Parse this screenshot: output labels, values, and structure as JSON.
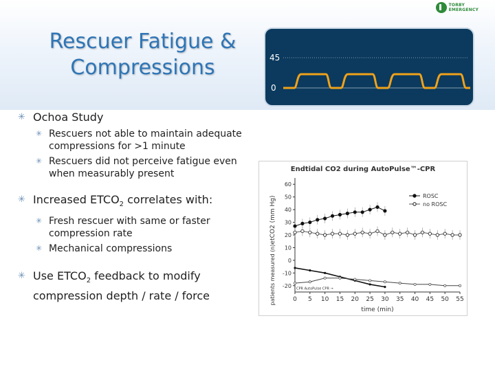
{
  "slide": {
    "title": "Rescuer Fatigue &\nCompressions",
    "logo_text": "TORBY EMERGENCY"
  },
  "monitor": {
    "label_high": "45",
    "label_low": "0",
    "colors": {
      "background": "#0b3a5e",
      "trace": "#f0a21a"
    }
  },
  "bullets": [
    {
      "text": "Ochoa Study",
      "sub": [
        "Rescuers not able to maintain adequate compressions for >1 minute",
        "Rescuers did not perceive fatigue even when measurably present"
      ]
    },
    {
      "text": "Increased ETCO2 correlates with:",
      "sub": [
        "Fresh rescuer with same or faster compression rate",
        "Mechanical compressions"
      ]
    },
    {
      "text": "Use ETCO2 feedback to modify compression depth / rate / force",
      "sub": []
    }
  ],
  "chart_data": {
    "type": "line",
    "title": "Endtidal CO2 during AutoPulse™-CPR",
    "xlabel": "time (min)",
    "ylabel": "etCO2 (mm Hg)",
    "ylabel2": "patients measured (n)",
    "x_ticks": [
      0,
      5,
      10,
      15,
      20,
      25,
      30,
      35,
      40,
      45,
      50,
      55
    ],
    "y_ticks": [
      60,
      50,
      40,
      30,
      20,
      10,
      0,
      -10,
      -20
    ],
    "ylim": [
      -25,
      65
    ],
    "xlim": [
      0,
      55
    ],
    "legend": "top-right",
    "annotation": "CPR  AutoPulse CPR →",
    "series": [
      {
        "name": "ROSC",
        "x": [
          0,
          2.5,
          5,
          7.5,
          10,
          12.5,
          15,
          17.5,
          20,
          22.5,
          25,
          27.5,
          30
        ],
        "y": [
          27,
          29,
          30,
          32,
          33,
          35,
          36,
          37,
          38,
          38,
          40,
          42,
          39
        ]
      },
      {
        "name": "no ROSC",
        "x": [
          0,
          2.5,
          5,
          7.5,
          10,
          12.5,
          15,
          17.5,
          20,
          22.5,
          25,
          27.5,
          30,
          32.5,
          35,
          37.5,
          40,
          42.5,
          45,
          47.5,
          50,
          52.5,
          55
        ],
        "y": [
          22,
          23,
          22,
          21,
          20,
          21,
          21,
          20,
          21,
          22,
          21,
          23,
          20,
          22,
          21,
          22,
          20,
          22,
          21,
          20,
          21,
          20,
          20
        ]
      }
    ],
    "patients_ROSC": {
      "x": [
        0,
        5,
        10,
        15,
        20,
        25,
        30
      ],
      "y": [
        -6,
        -8,
        -10,
        -13,
        -16,
        -19,
        -21
      ]
    },
    "patients_no_ROSC": {
      "x": [
        0,
        5,
        10,
        15,
        20,
        25,
        30,
        35,
        40,
        45,
        50,
        55
      ],
      "y": [
        -18,
        -17,
        -14,
        -14,
        -15,
        -16,
        -17,
        -18,
        -19,
        -19,
        -20,
        -20
      ]
    },
    "colors": {
      "ROSC": "#111111",
      "no_ROSC": "#ffffff"
    }
  }
}
